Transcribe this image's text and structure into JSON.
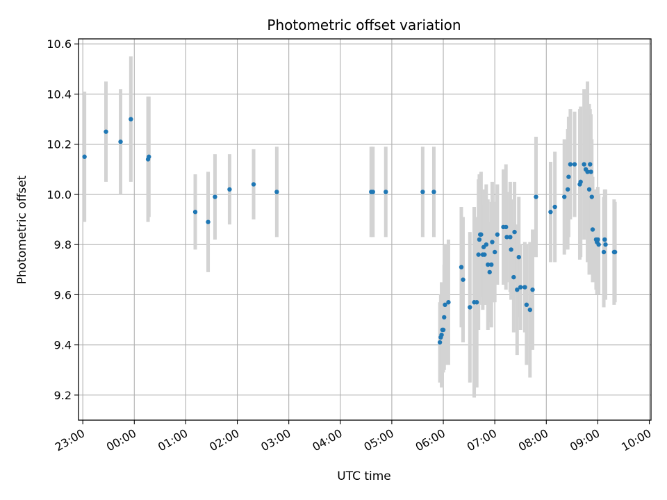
{
  "chart_data": {
    "type": "scatter",
    "title": "Photometric offset variation",
    "xlabel": "UTC time",
    "ylabel": "Photometric offset",
    "x_unit": "UTC time (hh:mm), night spanning midnight",
    "xlim": [
      "22:55",
      "10:02"
    ],
    "ylim": [
      9.1,
      10.62
    ],
    "grid": true,
    "legend": "none",
    "x_ticks": [
      "23:00",
      "00:00",
      "01:00",
      "02:00",
      "03:00",
      "04:00",
      "05:00",
      "06:00",
      "07:00",
      "08:00",
      "09:00",
      "10:00"
    ],
    "y_ticks": [
      "9.2",
      "9.4",
      "9.6",
      "9.8",
      "10.0",
      "10.2",
      "10.4",
      "10.6"
    ],
    "colors": {
      "point": "#1f77b4",
      "errorbar": "#d3d3d3",
      "grid": "#b0b0b0"
    },
    "series": [
      {
        "x": [
          "23:02",
          "23:27",
          "23:44",
          "23:56",
          "00:16",
          "00:17",
          "01:11",
          "01:26",
          "01:34",
          "01:51",
          "02:19",
          "02:46",
          "04:36",
          "04:38",
          "04:53",
          "05:36",
          "05:49",
          "05:56",
          "05:57",
          "05:58",
          "05:59",
          "06:00",
          "06:01",
          "06:02",
          "06:06",
          "06:21",
          "06:23",
          "06:31",
          "06:36",
          "06:39",
          "06:41",
          "06:42",
          "06:43",
          "06:44",
          "06:46",
          "06:47",
          "06:48",
          "06:50",
          "06:52",
          "06:54",
          "06:56",
          "06:57",
          "07:00",
          "07:03",
          "07:10",
          "07:13",
          "07:14",
          "07:18",
          "07:19",
          "07:22",
          "07:23",
          "07:26",
          "07:28",
          "07:30",
          "07:35",
          "07:37",
          "07:41",
          "07:44",
          "07:48",
          "08:05",
          "08:10",
          "08:21",
          "08:25",
          "08:26",
          "08:28",
          "08:33",
          "08:39",
          "08:40",
          "08:44",
          "08:46",
          "08:48",
          "08:50",
          "08:51",
          "08:52",
          "08:53",
          "08:54",
          "08:58",
          "08:59",
          "09:00",
          "09:01",
          "09:07",
          "09:08",
          "09:09",
          "09:19",
          "09:20"
        ],
        "y": [
          10.15,
          10.25,
          10.21,
          10.3,
          10.14,
          10.15,
          9.93,
          9.89,
          9.99,
          10.02,
          10.04,
          10.01,
          10.01,
          10.01,
          10.01,
          10.01,
          10.01,
          9.41,
          9.43,
          9.44,
          9.46,
          9.46,
          9.51,
          9.56,
          9.57,
          9.71,
          9.66,
          9.55,
          9.57,
          9.57,
          9.76,
          9.82,
          9.84,
          9.84,
          9.76,
          9.79,
          9.76,
          9.8,
          9.72,
          9.69,
          9.72,
          9.81,
          9.77,
          9.84,
          9.87,
          9.87,
          9.83,
          9.83,
          9.78,
          9.67,
          9.85,
          9.62,
          9.75,
          9.63,
          9.63,
          9.56,
          9.54,
          9.62,
          9.99,
          9.93,
          9.95,
          9.99,
          10.02,
          10.07,
          10.12,
          10.12,
          10.04,
          10.05,
          10.12,
          10.1,
          10.09,
          10.02,
          10.12,
          10.09,
          9.99,
          9.86,
          9.82,
          9.81,
          9.82,
          9.8,
          9.77,
          9.82,
          9.8,
          9.77,
          9.77
        ],
        "yerr": [
          0.26,
          0.2,
          0.21,
          0.25,
          0.25,
          0.24,
          0.15,
          0.2,
          0.17,
          0.14,
          0.14,
          0.18,
          0.18,
          0.18,
          0.18,
          0.18,
          0.18,
          0.16,
          0.17,
          0.21,
          0.16,
          0.17,
          0.21,
          0.24,
          0.25,
          0.24,
          0.25,
          0.3,
          0.38,
          0.34,
          0.3,
          0.26,
          0.22,
          0.25,
          0.22,
          0.23,
          0.2,
          0.24,
          0.26,
          0.2,
          0.25,
          0.24,
          0.2,
          0.2,
          0.23,
          0.25,
          0.18,
          0.22,
          0.2,
          0.22,
          0.2,
          0.26,
          0.24,
          0.17,
          0.18,
          0.24,
          0.27,
          0.24,
          0.24,
          0.2,
          0.22,
          0.23,
          0.24,
          0.24,
          0.22,
          0.21,
          0.3,
          0.3,
          0.3,
          0.24,
          0.36,
          0.34,
          0.22,
          0.23,
          0.23,
          0.21,
          0.2,
          0.21,
          0.21,
          0.2,
          0.22,
          0.2,
          0.22,
          0.21,
          0.2
        ]
      }
    ]
  }
}
